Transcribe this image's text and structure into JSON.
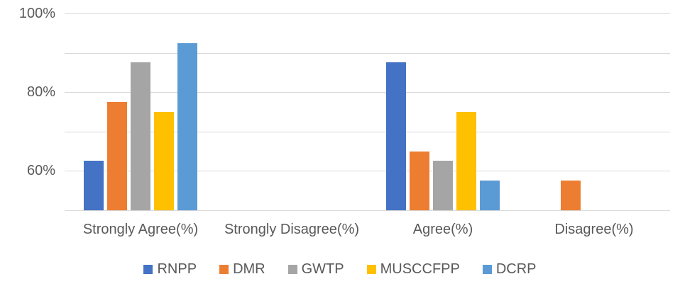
{
  "chart_data": {
    "type": "bar",
    "title": "",
    "categories": [
      "Strongly Agree(%)",
      "Strongly Disagree(%)",
      "Agree(%)",
      "Disagree(%)"
    ],
    "series": [
      {
        "name": "RNPP",
        "color": "#4472C4",
        "values": [
          62.5,
          0,
          87.5,
          0
        ]
      },
      {
        "name": "DMR",
        "color": "#ED7D31",
        "values": [
          77.5,
          0,
          65,
          57.5
        ]
      },
      {
        "name": "GWTP",
        "color": "#A5A5A5",
        "values": [
          87.5,
          0,
          62.5,
          0
        ]
      },
      {
        "name": "MUSCCFPP",
        "color": "#FFC000",
        "values": [
          75,
          0,
          75,
          0
        ]
      },
      {
        "name": "DCRP",
        "color": "#5B9BD5",
        "values": [
          92.5,
          0,
          57.5,
          0
        ]
      }
    ],
    "y_axis": {
      "min": 50,
      "max": 100,
      "gridline_step": 10,
      "tick_labels": [
        {
          "value": 100,
          "label": "100%"
        },
        {
          "value": 80,
          "label": "80%"
        },
        {
          "value": 60,
          "label": "60%"
        }
      ]
    },
    "xlabel": "",
    "ylabel": "",
    "grid": true,
    "legend_position": "bottom",
    "colors": {
      "text": "#595959",
      "gridline": "#D9D9D9",
      "background": "#FFFFFF"
    }
  }
}
